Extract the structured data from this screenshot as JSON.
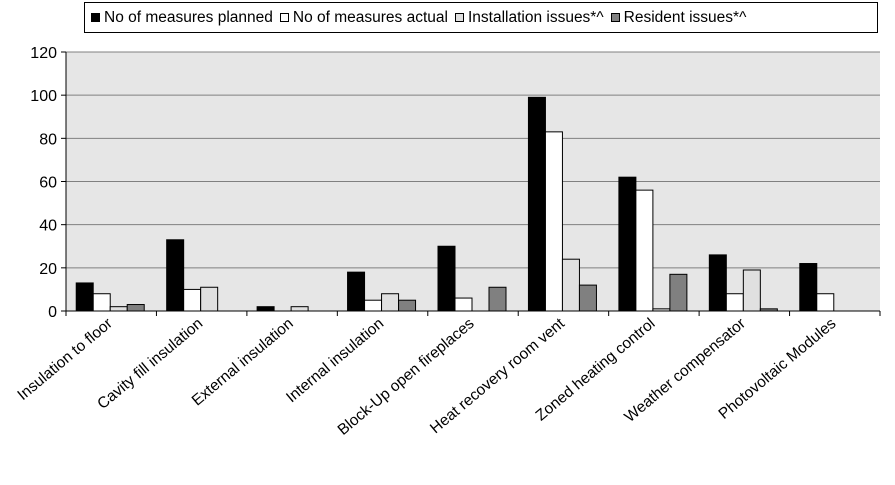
{
  "chart_data": {
    "type": "bar",
    "title": "",
    "xlabel": "",
    "ylabel": "",
    "ylim": [
      0,
      120
    ],
    "yticks": [
      0,
      20,
      40,
      60,
      80,
      100,
      120
    ],
    "grid": true,
    "legend_position": "top",
    "categories": [
      "Insulation to floor",
      "Cavity fill insulation",
      "External insulation",
      "Internal insulation",
      "Block-Up open fireplaces",
      "Heat recovery room vent",
      "Zoned heating control",
      "Weather compensator",
      "Photovoltaic Modules"
    ],
    "series": [
      {
        "name": "No of measures planned",
        "color": "#000000",
        "values": [
          13,
          33,
          2,
          18,
          30,
          99,
          62,
          26,
          22
        ]
      },
      {
        "name": "No of measures actual",
        "color": "#ffffff",
        "values": [
          8,
          10,
          0,
          5,
          6,
          83,
          56,
          8,
          8
        ]
      },
      {
        "name": "Installation issues*^",
        "color": "#e0e0e0",
        "values": [
          2,
          11,
          2,
          8,
          0,
          24,
          1,
          19,
          0
        ]
      },
      {
        "name": "Resident issues*^",
        "color": "#808080",
        "values": [
          3,
          0,
          0,
          5,
          11,
          12,
          17,
          1,
          0
        ]
      }
    ]
  }
}
